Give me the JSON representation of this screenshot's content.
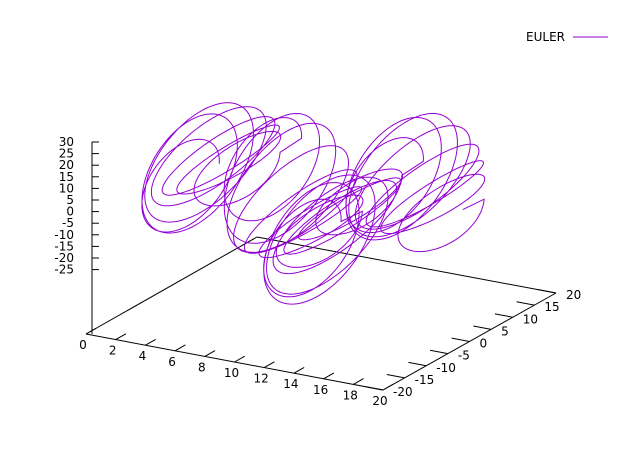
{
  "chart_data": {
    "type": "line",
    "series": [
      {
        "name": "EULER",
        "color": "#9400d3"
      }
    ],
    "legend_position": "top-right",
    "x_axis": {
      "ticks": [
        "0",
        "2",
        "4",
        "6",
        "8",
        "10",
        "12",
        "14",
        "16",
        "18",
        "20"
      ],
      "range": [
        0,
        20
      ]
    },
    "y_axis": {
      "ticks": [
        "-20",
        "-15",
        "-10",
        "-5",
        "0",
        "5",
        "10",
        "15",
        "20"
      ],
      "range": [
        -20,
        20
      ]
    },
    "z_axis": {
      "ticks": [
        "30",
        "25",
        "20",
        "15",
        "10",
        "5",
        "0",
        "-5",
        "-10",
        "-15",
        "-20",
        "-25"
      ],
      "range": [
        -25,
        30
      ]
    },
    "grid": false
  }
}
